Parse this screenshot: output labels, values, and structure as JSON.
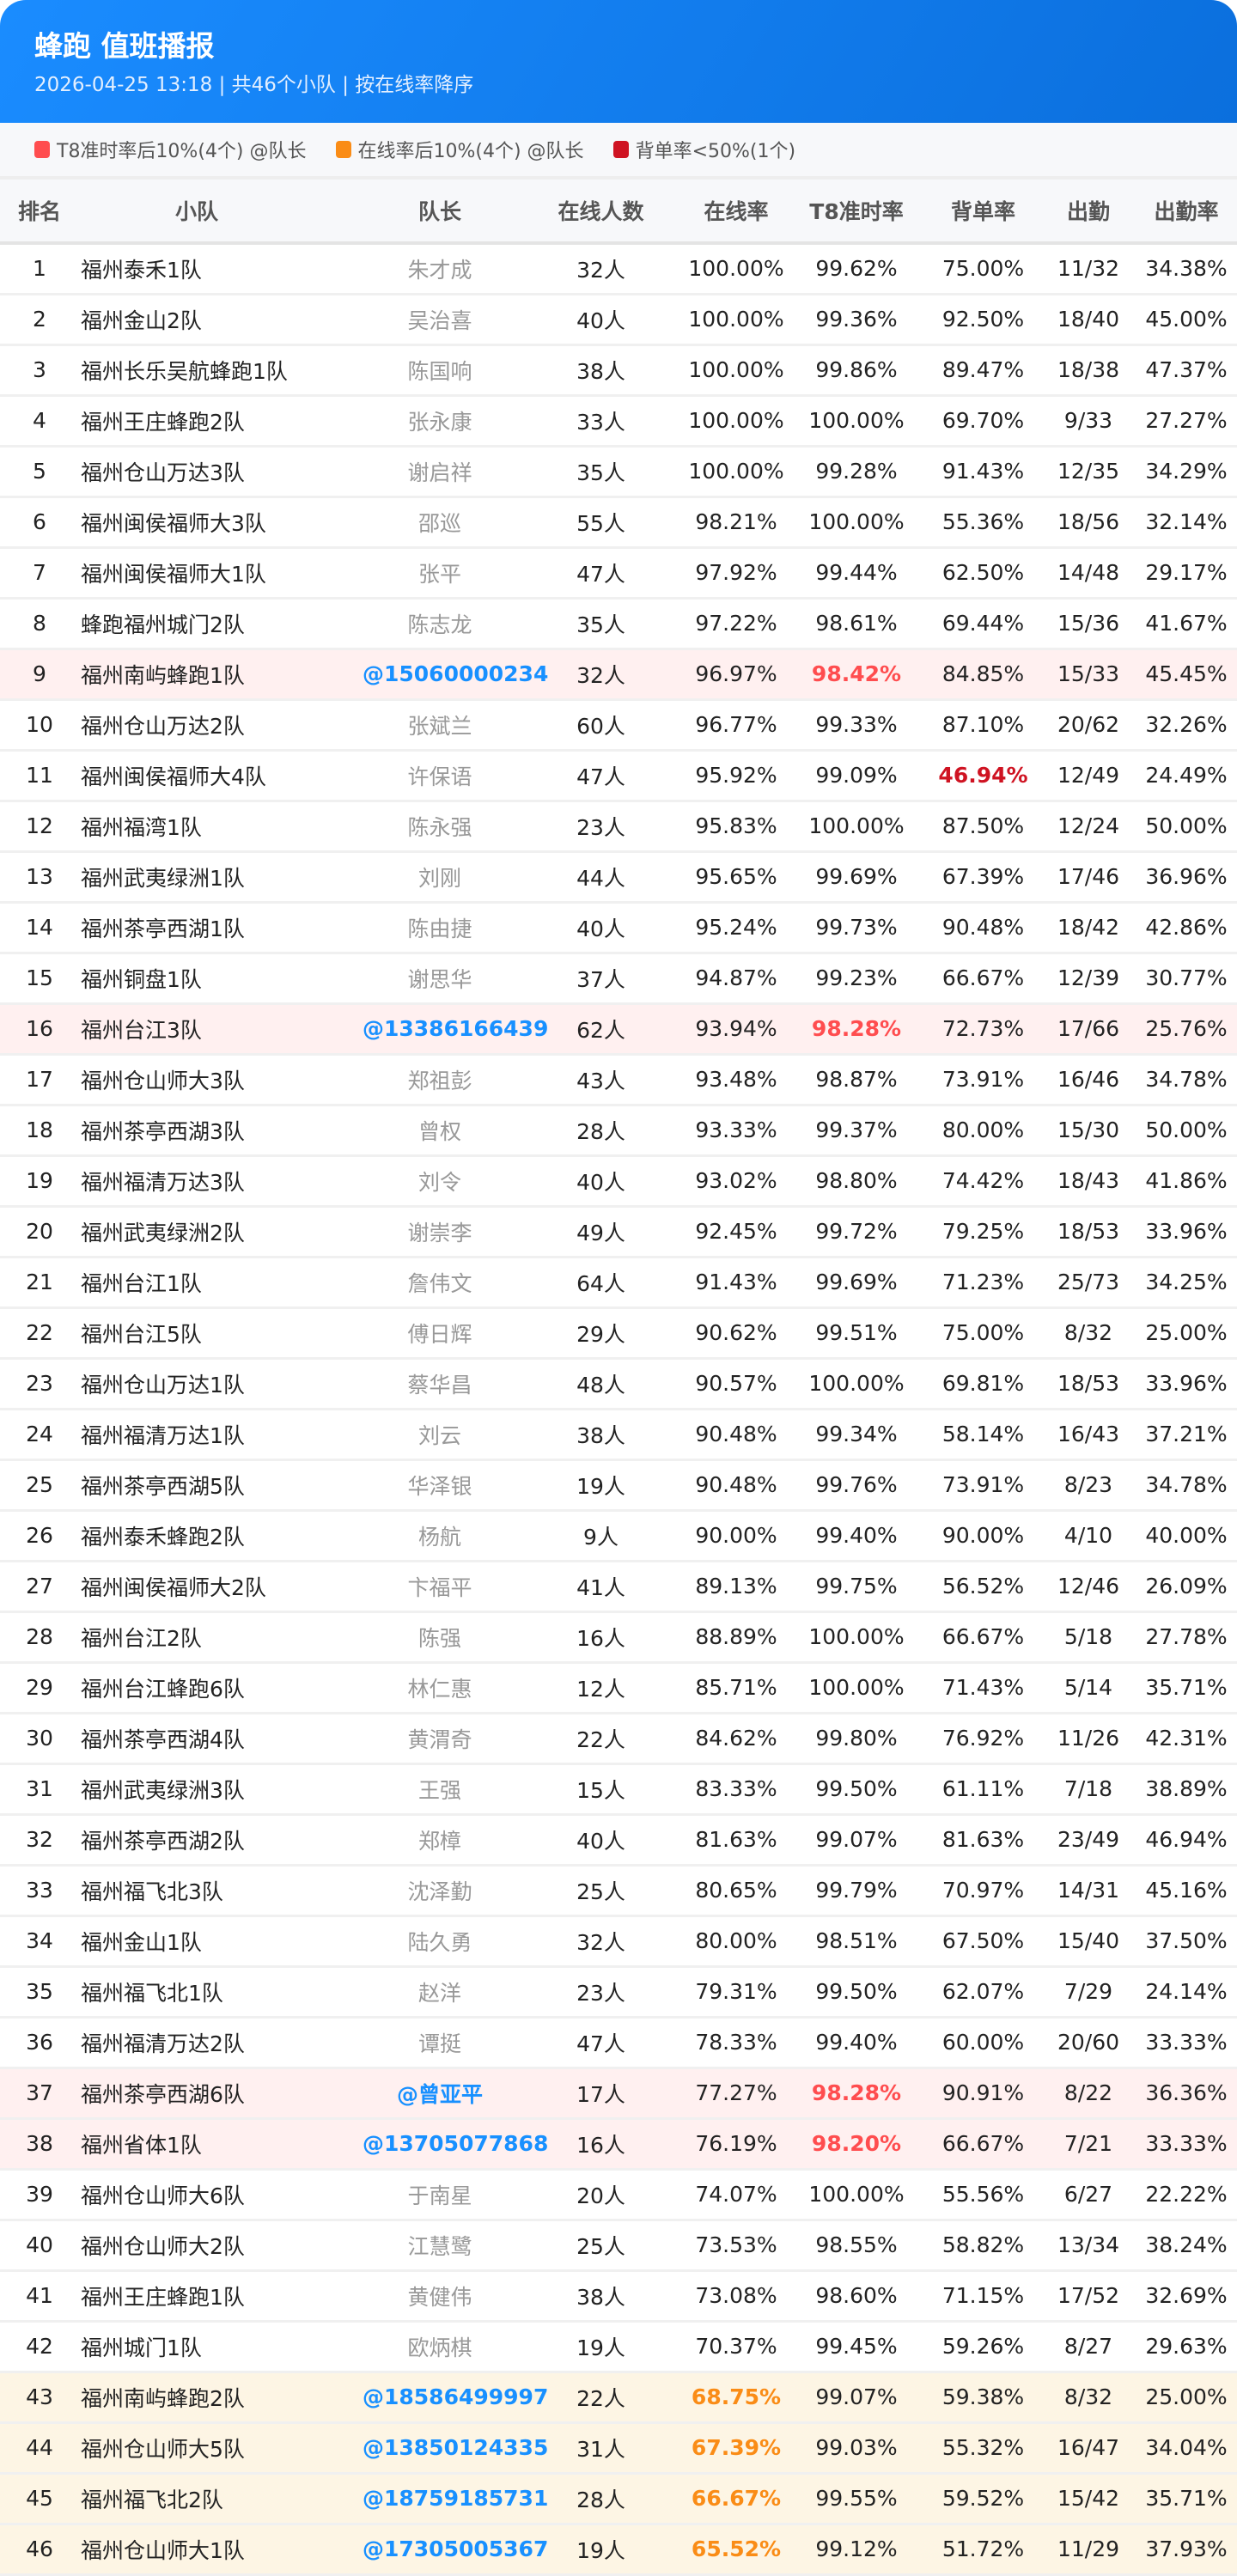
{
  "header": {
    "title": "蜂跑 值班播报",
    "subtitle": "2026-04-25 13:18 | 共46个小队 | 按在线率降序"
  },
  "legend": [
    {
      "label": "T8准时率后10%(4个) @队长",
      "color": "#ff4d4f"
    },
    {
      "label": "在线率后10%(4个) @队长",
      "color": "#fa8c16"
    },
    {
      "label": "背单率<50%(1个)",
      "color": "#cf1322"
    }
  ],
  "columns": [
    "排名",
    "小队",
    "队长",
    "在线人数",
    "在线率",
    "T8准时率",
    "背单率",
    "出勤",
    "出勤率"
  ],
  "rows": [
    [
      "1",
      "福州泰禾1队",
      "朱才成",
      "32人",
      "100.00%",
      "99.62%",
      "75.00%",
      "11/32",
      "34.38%",
      ""
    ],
    [
      "2",
      "福州金山2队",
      "吴治喜",
      "40人",
      "100.00%",
      "99.36%",
      "92.50%",
      "18/40",
      "45.00%",
      ""
    ],
    [
      "3",
      "福州长乐吴航蜂跑1队",
      "陈国响",
      "38人",
      "100.00%",
      "99.86%",
      "89.47%",
      "18/38",
      "47.37%",
      ""
    ],
    [
      "4",
      "福州王庄蜂跑2队",
      "张永康",
      "33人",
      "100.00%",
      "100.00%",
      "69.70%",
      "9/33",
      "27.27%",
      ""
    ],
    [
      "5",
      "福州仓山万达3队",
      "谢启祥",
      "35人",
      "100.00%",
      "99.28%",
      "91.43%",
      "12/35",
      "34.29%",
      ""
    ],
    [
      "6",
      "福州闽侯福师大3队",
      "邵巡",
      "55人",
      "98.21%",
      "100.00%",
      "55.36%",
      "18/56",
      "32.14%",
      ""
    ],
    [
      "7",
      "福州闽侯福师大1队",
      "张平",
      "47人",
      "97.92%",
      "99.44%",
      "62.50%",
      "14/48",
      "29.17%",
      ""
    ],
    [
      "8",
      "蜂跑福州城门2队",
      "陈志龙",
      "35人",
      "97.22%",
      "98.61%",
      "69.44%",
      "15/36",
      "41.67%",
      ""
    ],
    [
      "9",
      "福州南屿蜂跑1队",
      "@15060000234",
      "32人",
      "96.97%",
      "98.42%",
      "84.85%",
      "15/33",
      "45.45%",
      "t8"
    ],
    [
      "10",
      "福州仓山万达2队",
      "张斌兰",
      "60人",
      "96.77%",
      "99.33%",
      "87.10%",
      "20/62",
      "32.26%",
      ""
    ],
    [
      "11",
      "福州闽侯福师大4队",
      "许保语",
      "47人",
      "95.92%",
      "99.09%",
      "46.94%",
      "12/49",
      "24.49%",
      "beidan"
    ],
    [
      "12",
      "福州福湾1队",
      "陈永强",
      "23人",
      "95.83%",
      "100.00%",
      "87.50%",
      "12/24",
      "50.00%",
      ""
    ],
    [
      "13",
      "福州武夷绿洲1队",
      "刘刚",
      "44人",
      "95.65%",
      "99.69%",
      "67.39%",
      "17/46",
      "36.96%",
      ""
    ],
    [
      "14",
      "福州茶亭西湖1队",
      "陈由捷",
      "40人",
      "95.24%",
      "99.73%",
      "90.48%",
      "18/42",
      "42.86%",
      ""
    ],
    [
      "15",
      "福州铜盘1队",
      "谢思华",
      "37人",
      "94.87%",
      "99.23%",
      "66.67%",
      "12/39",
      "30.77%",
      ""
    ],
    [
      "16",
      "福州台江3队",
      "@13386166439",
      "62人",
      "93.94%",
      "98.28%",
      "72.73%",
      "17/66",
      "25.76%",
      "t8"
    ],
    [
      "17",
      "福州仓山师大3队",
      "郑祖彭",
      "43人",
      "93.48%",
      "98.87%",
      "73.91%",
      "16/46",
      "34.78%",
      ""
    ],
    [
      "18",
      "福州茶亭西湖3队",
      "曾权",
      "28人",
      "93.33%",
      "99.37%",
      "80.00%",
      "15/30",
      "50.00%",
      ""
    ],
    [
      "19",
      "福州福清万达3队",
      "刘令",
      "40人",
      "93.02%",
      "98.80%",
      "74.42%",
      "18/43",
      "41.86%",
      ""
    ],
    [
      "20",
      "福州武夷绿洲2队",
      "谢崇李",
      "49人",
      "92.45%",
      "99.72%",
      "79.25%",
      "18/53",
      "33.96%",
      ""
    ],
    [
      "21",
      "福州台江1队",
      "詹伟文",
      "64人",
      "91.43%",
      "99.69%",
      "71.23%",
      "25/73",
      "34.25%",
      ""
    ],
    [
      "22",
      "福州台江5队",
      "傅日辉",
      "29人",
      "90.62%",
      "99.51%",
      "75.00%",
      "8/32",
      "25.00%",
      ""
    ],
    [
      "23",
      "福州仓山万达1队",
      "蔡华昌",
      "48人",
      "90.57%",
      "100.00%",
      "69.81%",
      "18/53",
      "33.96%",
      ""
    ],
    [
      "24",
      "福州福清万达1队",
      "刘云",
      "38人",
      "90.48%",
      "99.34%",
      "58.14%",
      "16/43",
      "37.21%",
      ""
    ],
    [
      "25",
      "福州茶亭西湖5队",
      "华泽银",
      "19人",
      "90.48%",
      "99.76%",
      "73.91%",
      "8/23",
      "34.78%",
      ""
    ],
    [
      "26",
      "福州泰禾蜂跑2队",
      "杨航",
      "9人",
      "90.00%",
      "99.40%",
      "90.00%",
      "4/10",
      "40.00%",
      ""
    ],
    [
      "27",
      "福州闽侯福师大2队",
      "卞福平",
      "41人",
      "89.13%",
      "99.75%",
      "56.52%",
      "12/46",
      "26.09%",
      ""
    ],
    [
      "28",
      "福州台江2队",
      "陈强",
      "16人",
      "88.89%",
      "100.00%",
      "66.67%",
      "5/18",
      "27.78%",
      ""
    ],
    [
      "29",
      "福州台江蜂跑6队",
      "林仁惠",
      "12人",
      "85.71%",
      "100.00%",
      "71.43%",
      "5/14",
      "35.71%",
      ""
    ],
    [
      "30",
      "福州茶亭西湖4队",
      "黄渭奇",
      "22人",
      "84.62%",
      "99.80%",
      "76.92%",
      "11/26",
      "42.31%",
      ""
    ],
    [
      "31",
      "福州武夷绿洲3队",
      "王强",
      "15人",
      "83.33%",
      "99.50%",
      "61.11%",
      "7/18",
      "38.89%",
      ""
    ],
    [
      "32",
      "福州茶亭西湖2队",
      "郑樟",
      "40人",
      "81.63%",
      "99.07%",
      "81.63%",
      "23/49",
      "46.94%",
      ""
    ],
    [
      "33",
      "福州福飞北3队",
      "沈泽勤",
      "25人",
      "80.65%",
      "99.79%",
      "70.97%",
      "14/31",
      "45.16%",
      ""
    ],
    [
      "34",
      "福州金山1队",
      "陆久勇",
      "32人",
      "80.00%",
      "98.51%",
      "67.50%",
      "15/40",
      "37.50%",
      ""
    ],
    [
      "35",
      "福州福飞北1队",
      "赵洋",
      "23人",
      "79.31%",
      "99.50%",
      "62.07%",
      "7/29",
      "24.14%",
      ""
    ],
    [
      "36",
      "福州福清万达2队",
      "谭挺",
      "47人",
      "78.33%",
      "99.40%",
      "60.00%",
      "20/60",
      "33.33%",
      ""
    ],
    [
      "37",
      "福州茶亭西湖6队",
      "@曾亚平",
      "17人",
      "77.27%",
      "98.28%",
      "90.91%",
      "8/22",
      "36.36%",
      "t8"
    ],
    [
      "38",
      "福州省体1队",
      "@13705077868",
      "16人",
      "76.19%",
      "98.20%",
      "66.67%",
      "7/21",
      "33.33%",
      "t8"
    ],
    [
      "39",
      "福州仓山师大6队",
      "于南星",
      "20人",
      "74.07%",
      "100.00%",
      "55.56%",
      "6/27",
      "22.22%",
      ""
    ],
    [
      "40",
      "福州仓山师大2队",
      "江慧鹭",
      "25人",
      "73.53%",
      "98.55%",
      "58.82%",
      "13/34",
      "38.24%",
      ""
    ],
    [
      "41",
      "福州王庄蜂跑1队",
      "黄健伟",
      "38人",
      "73.08%",
      "98.60%",
      "71.15%",
      "17/52",
      "32.69%",
      ""
    ],
    [
      "42",
      "福州城门1队",
      "欧炳棋",
      "19人",
      "70.37%",
      "99.45%",
      "59.26%",
      "8/27",
      "29.63%",
      ""
    ],
    [
      "43",
      "福州南屿蜂跑2队",
      "@18586499997",
      "22人",
      "68.75%",
      "99.07%",
      "59.38%",
      "8/32",
      "25.00%",
      "online"
    ],
    [
      "44",
      "福州仓山师大5队",
      "@13850124335",
      "31人",
      "67.39%",
      "99.03%",
      "55.32%",
      "16/47",
      "34.04%",
      "online"
    ],
    [
      "45",
      "福州福飞北2队",
      "@18759185731",
      "28人",
      "66.67%",
      "99.55%",
      "59.52%",
      "15/42",
      "35.71%",
      "online"
    ],
    [
      "46",
      "福州仓山师大1队",
      "@17305005367",
      "19人",
      "65.52%",
      "99.12%",
      "51.72%",
      "11/29",
      "37.93%",
      "online"
    ]
  ]
}
